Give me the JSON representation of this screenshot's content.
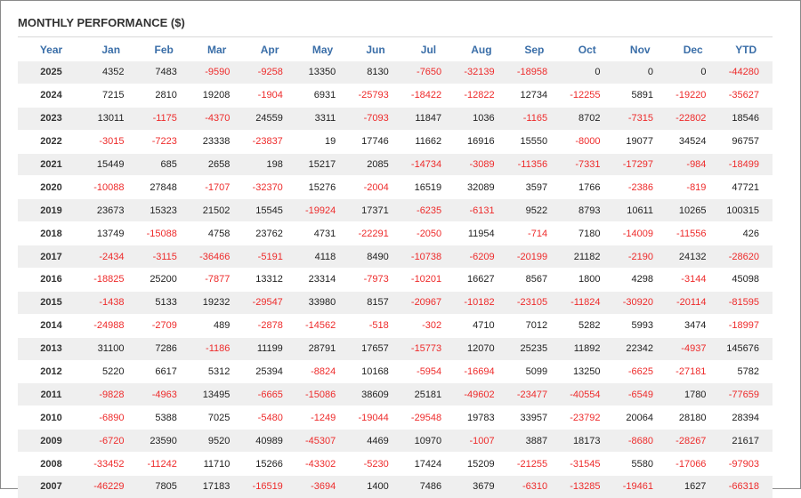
{
  "title": "MONTHLY PERFORMANCE ($)",
  "table": {
    "header": [
      "Year",
      "Jan",
      "Feb",
      "Mar",
      "Apr",
      "May",
      "Jun",
      "Jul",
      "Aug",
      "Sep",
      "Oct",
      "Nov",
      "Dec",
      "YTD"
    ],
    "rows": [
      [
        2025,
        4352,
        7483,
        -9590,
        -9258,
        13350,
        8130,
        -7650,
        -32139,
        -18958,
        0,
        0,
        0,
        -44280
      ],
      [
        2024,
        7215,
        2810,
        19208,
        -1904,
        6931,
        -25793,
        -18422,
        -12822,
        12734,
        -12255,
        5891,
        -19220,
        -35627
      ],
      [
        2023,
        13011,
        -1175,
        -4370,
        24559,
        3311,
        -7093,
        11847,
        1036,
        -1165,
        8702,
        -7315,
        -22802,
        18546
      ],
      [
        2022,
        -3015,
        -7223,
        23338,
        -23837,
        19,
        17746,
        11662,
        16916,
        15550,
        -8000,
        19077,
        34524,
        96757
      ],
      [
        2021,
        15449,
        685,
        2658,
        198,
        15217,
        2085,
        -14734,
        -3089,
        -11356,
        -7331,
        -17297,
        -984,
        -18499
      ],
      [
        2020,
        -10088,
        27848,
        -1707,
        -32370,
        15276,
        -2004,
        16519,
        32089,
        3597,
        1766,
        -2386,
        -819,
        47721
      ],
      [
        2019,
        23673,
        15323,
        21502,
        15545,
        -19924,
        17371,
        -6235,
        -6131,
        9522,
        8793,
        10611,
        10265,
        100315
      ],
      [
        2018,
        13749,
        -15088,
        4758,
        23762,
        4731,
        -22291,
        -2050,
        11954,
        -714,
        7180,
        -14009,
        -11556,
        426
      ],
      [
        2017,
        -2434,
        -3115,
        -36466,
        -5191,
        4118,
        8490,
        -10738,
        -6209,
        -20199,
        21182,
        -2190,
        24132,
        -28620
      ],
      [
        2016,
        -18825,
        25200,
        -7877,
        13312,
        23314,
        -7973,
        -10201,
        16627,
        8567,
        1800,
        4298,
        -3144,
        45098
      ],
      [
        2015,
        -1438,
        5133,
        19232,
        -29547,
        33980,
        8157,
        -20967,
        -10182,
        -23105,
        -11824,
        -30920,
        -20114,
        -81595
      ],
      [
        2014,
        -24988,
        -2709,
        489,
        -2878,
        -14562,
        -518,
        -302,
        4710,
        7012,
        5282,
        5993,
        3474,
        -18997
      ],
      [
        2013,
        31100,
        7286,
        -1186,
        11199,
        28791,
        17657,
        -15773,
        12070,
        25235,
        11892,
        22342,
        -4937,
        145676
      ],
      [
        2012,
        5220,
        6617,
        5312,
        25394,
        -8824,
        10168,
        -5954,
        -16694,
        5099,
        13250,
        -6625,
        -27181,
        5782
      ],
      [
        2011,
        -9828,
        -4963,
        13495,
        -6665,
        -15086,
        38609,
        25181,
        -49602,
        -23477,
        -40554,
        -6549,
        1780,
        -77659
      ],
      [
        2010,
        -6890,
        5388,
        7025,
        -5480,
        -1249,
        -19044,
        -29548,
        19783,
        33957,
        -23792,
        20064,
        28180,
        28394
      ],
      [
        2009,
        -6720,
        23590,
        9520,
        40989,
        -45307,
        4469,
        10970,
        -1007,
        3887,
        18173,
        -8680,
        -28267,
        21617
      ],
      [
        2008,
        -33452,
        -11242,
        11710,
        15266,
        -43302,
        -5230,
        17424,
        15209,
        -21255,
        -31545,
        5580,
        -17066,
        -97903
      ],
      [
        2007,
        -46229,
        7805,
        17183,
        -16519,
        -3694,
        1400,
        7486,
        3679,
        -6310,
        -13285,
        -19461,
        1627,
        -66318
      ]
    ]
  }
}
